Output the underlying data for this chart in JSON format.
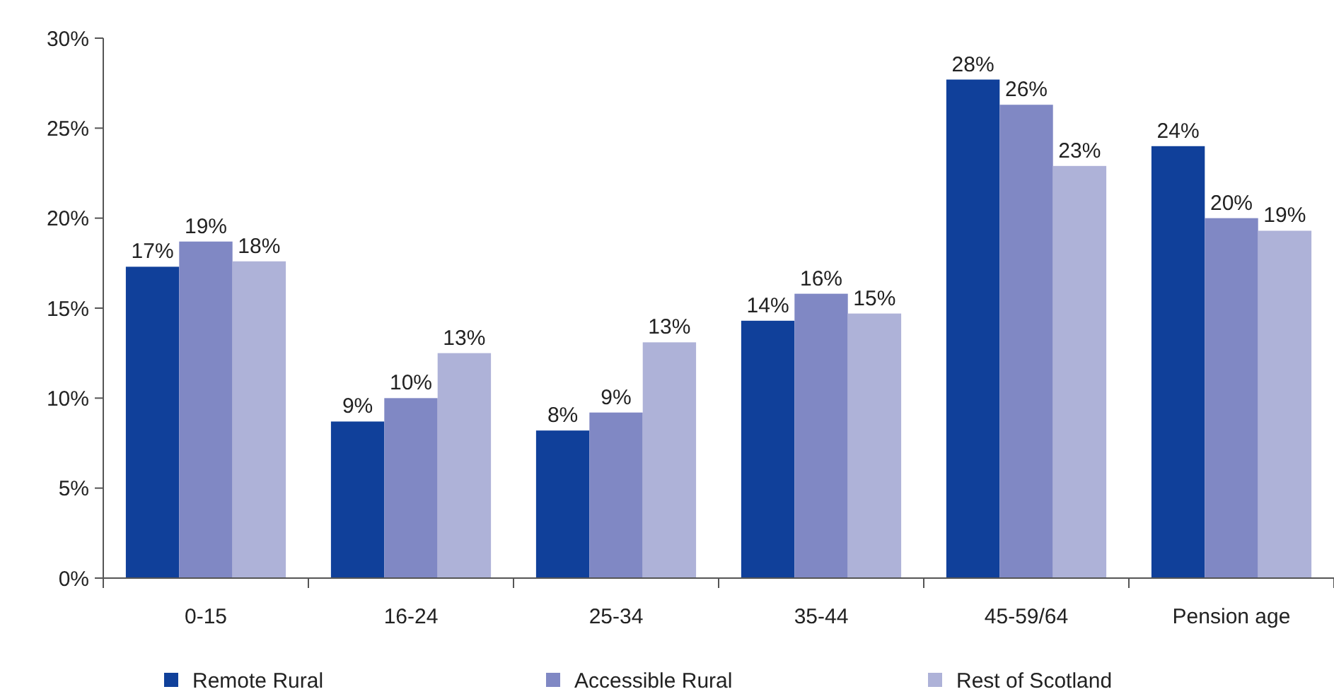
{
  "chart_data": {
    "type": "bar",
    "categories": [
      "0-15",
      "16-24",
      "25-34",
      "35-44",
      "45-59/64",
      "Pension age"
    ],
    "series": [
      {
        "name": "Remote Rural",
        "color": "#10409a",
        "values": [
          17.3,
          8.7,
          8.2,
          14.3,
          27.7,
          24.0
        ],
        "value_labels": [
          "17%",
          "9%",
          "8%",
          "14%",
          "28%",
          "24%"
        ]
      },
      {
        "name": "Accessible Rural",
        "color": "#8088c4",
        "values": [
          18.7,
          10.0,
          9.2,
          15.8,
          26.3,
          20.0
        ],
        "value_labels": [
          "19%",
          "10%",
          "9%",
          "16%",
          "26%",
          "20%"
        ]
      },
      {
        "name": "Rest of Scotland",
        "color": "#aeb2d8",
        "values": [
          17.6,
          12.5,
          13.1,
          14.7,
          22.9,
          19.3
        ],
        "value_labels": [
          "18%",
          "13%",
          "13%",
          "15%",
          "23%",
          "19%"
        ]
      }
    ],
    "ylim": [
      0,
      30
    ],
    "yticks": [
      {
        "value": 0,
        "label": "0%"
      },
      {
        "value": 5,
        "label": "5%"
      },
      {
        "value": 10,
        "label": "10%"
      },
      {
        "value": 15,
        "label": "15%"
      },
      {
        "value": 20,
        "label": "20%"
      },
      {
        "value": 25,
        "label": "25%"
      },
      {
        "value": 30,
        "label": "30%"
      }
    ],
    "legend": "bottom"
  }
}
